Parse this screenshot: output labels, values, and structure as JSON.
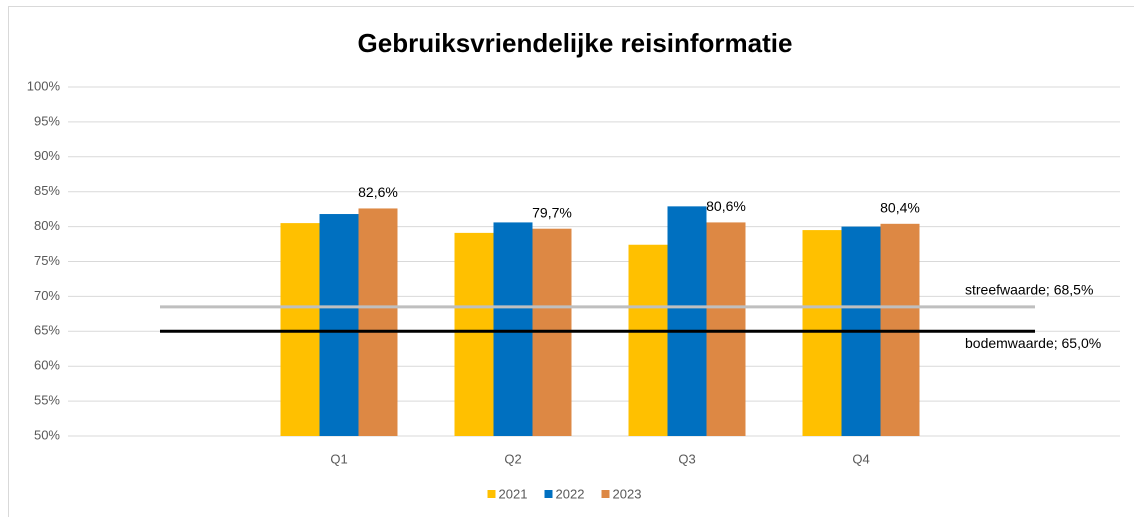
{
  "chart_data": {
    "type": "bar",
    "title": "Gebruiksvriendelijke reisinformatie",
    "categories": [
      "Q1",
      "Q2",
      "Q3",
      "Q4"
    ],
    "series": [
      {
        "name": "2021",
        "color": "#ffc000",
        "values": [
          80.5,
          79.1,
          77.4,
          79.5
        ]
      },
      {
        "name": "2022",
        "color": "#0070c0",
        "values": [
          81.8,
          80.6,
          82.9,
          80.0
        ]
      },
      {
        "name": "2023",
        "color": "#dd8844",
        "values": [
          82.6,
          79.7,
          80.6,
          80.4
        ],
        "value_labels": [
          "82,6%",
          "79,7%",
          "80,6%",
          "80,4%"
        ]
      }
    ],
    "reference_lines": [
      {
        "value": 68.5,
        "label": "streefwaarde; 68,5%",
        "color": "#bfbfbf"
      },
      {
        "value": 65.0,
        "label": "bodemwaarde; 65,0%",
        "color": "#000000"
      }
    ],
    "ylim": [
      50,
      100
    ],
    "yticks": [
      {
        "value": 50,
        "label": "50%"
      },
      {
        "value": 55,
        "label": "55%"
      },
      {
        "value": 60,
        "label": "60%"
      },
      {
        "value": 65,
        "label": "65%"
      },
      {
        "value": 70,
        "label": "70%"
      },
      {
        "value": 75,
        "label": "75%"
      },
      {
        "value": 80,
        "label": "80%"
      },
      {
        "value": 85,
        "label": "85%"
      },
      {
        "value": 90,
        "label": "90%"
      },
      {
        "value": 95,
        "label": "95%"
      },
      {
        "value": 100,
        "label": "100%"
      }
    ],
    "grid": true,
    "legend": "bottom"
  }
}
